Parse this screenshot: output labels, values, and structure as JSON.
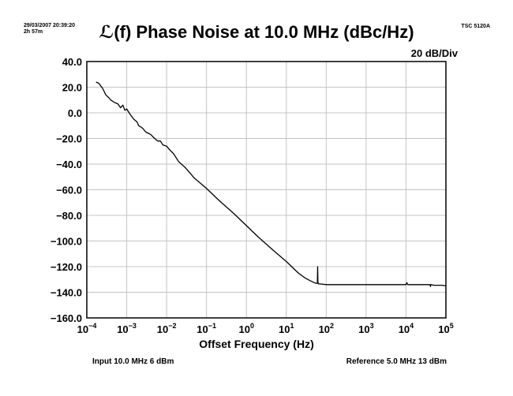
{
  "header": {
    "timestamp": "29/03/2007 20:39:20",
    "elapsed": "2h 57m",
    "device": "TSC 5120A"
  },
  "footer": {
    "input": "Input 10.0 MHz 6 dBm",
    "reference": "Reference 5.0 MHz 13 dBm"
  },
  "chart_data": {
    "type": "line",
    "title": "ℒ(f) Phase Noise at 10.0 MHz (dBc/Hz)",
    "scale_label": "20 dB/Div",
    "xlabel": "Offset Frequency (Hz)",
    "ylabel": "",
    "xscale": "log",
    "xlim": [
      0.0001,
      100000
    ],
    "ylim": [
      -160,
      40
    ],
    "x_ticks": [
      {
        "value": 0.0001,
        "label": "10−4"
      },
      {
        "value": 0.001,
        "label": "10−3"
      },
      {
        "value": 0.01,
        "label": "10−2"
      },
      {
        "value": 0.1,
        "label": "10−1"
      },
      {
        "value": 1,
        "label": "100"
      },
      {
        "value": 10,
        "label": "101"
      },
      {
        "value": 100,
        "label": "102"
      },
      {
        "value": 1000,
        "label": "103"
      },
      {
        "value": 10000,
        "label": "104"
      },
      {
        "value": 100000,
        "label": "105"
      }
    ],
    "y_ticks": [
      {
        "value": 40,
        "label": "40.0"
      },
      {
        "value": 20,
        "label": "20.0"
      },
      {
        "value": 0,
        "label": "0.0"
      },
      {
        "value": -20,
        "label": "−20.0"
      },
      {
        "value": -40,
        "label": "−40.0"
      },
      {
        "value": -60,
        "label": "−60.0"
      },
      {
        "value": -80,
        "label": "−80.0"
      },
      {
        "value": -100,
        "label": "−100.0"
      },
      {
        "value": -120,
        "label": "−120.0"
      },
      {
        "value": -140,
        "label": "−140.0"
      },
      {
        "value": -160,
        "label": "−160.0"
      }
    ],
    "grid": true,
    "series": [
      {
        "x": [
          0.00017,
          0.0002,
          0.00025,
          0.0003,
          0.00035,
          0.0004,
          0.0005,
          0.0006,
          0.0007,
          0.0008,
          0.0009,
          0.001,
          0.0012,
          0.0015,
          0.0018,
          0.002,
          0.0025,
          0.003,
          0.0035,
          0.004,
          0.005,
          0.006,
          0.007,
          0.008,
          0.01,
          0.012,
          0.015,
          0.02,
          0.03,
          0.05,
          0.1,
          0.2,
          0.5,
          1,
          2,
          5,
          10,
          20,
          30,
          40,
          50,
          55,
          60,
          61,
          62,
          63,
          64,
          65,
          70,
          100,
          200,
          500,
          1000,
          2000,
          5000,
          10000,
          10500,
          11000,
          20000,
          40000,
          41000,
          42000,
          50000,
          80000,
          100000
        ],
        "y": [
          24,
          23,
          19,
          14,
          12,
          10,
          8,
          7,
          4,
          6,
          2,
          3,
          -1,
          -5,
          -7,
          -10,
          -12,
          -15,
          -16,
          -17,
          -20,
          -22,
          -22,
          -25,
          -26,
          -29,
          -32,
          -38,
          -43,
          -51,
          -59,
          -68,
          -79,
          -88,
          -97,
          -108,
          -116,
          -125,
          -129,
          -131,
          -132.5,
          -133,
          -133,
          -120,
          -132,
          -133,
          -133.5,
          -133.5,
          -133.5,
          -134,
          -134,
          -134,
          -134,
          -134,
          -134,
          -134,
          -132.5,
          -134,
          -134,
          -134,
          -135.5,
          -134,
          -134.5,
          -134.5,
          -135
        ]
      }
    ]
  }
}
